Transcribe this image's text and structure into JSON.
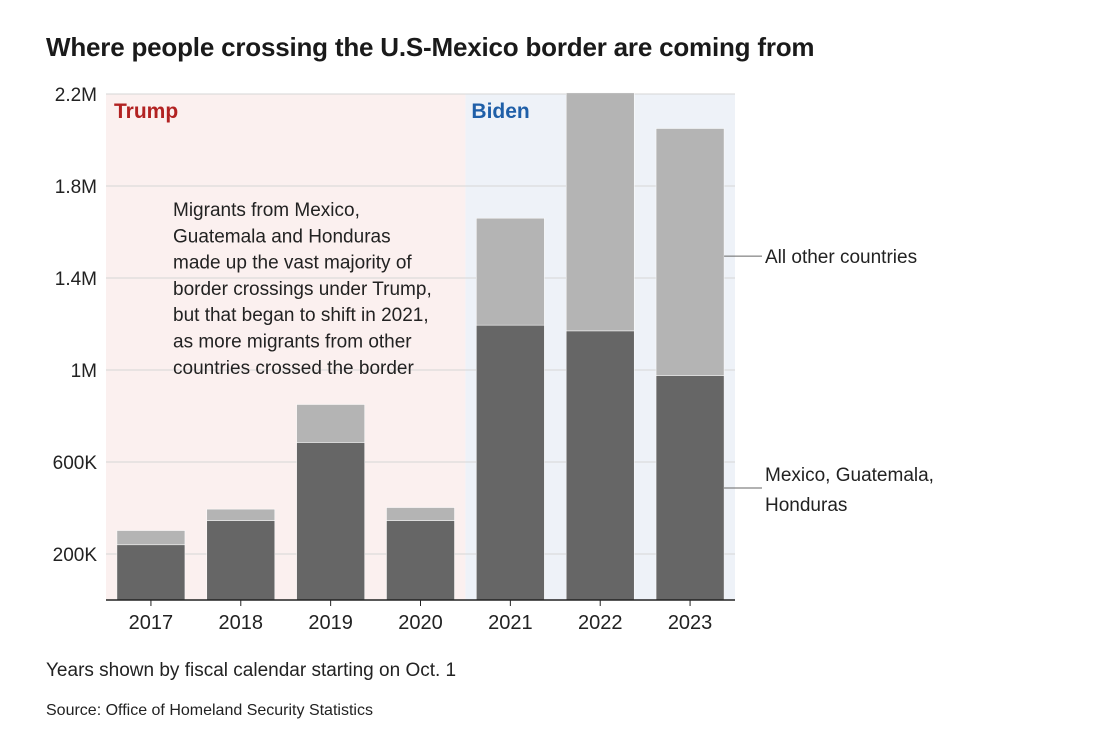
{
  "chart_data": {
    "type": "bar",
    "stacked": true,
    "title": "Where people crossing the U.S-Mexico border are coming from",
    "categories": [
      "2017",
      "2018",
      "2019",
      "2020",
      "2021",
      "2022",
      "2023"
    ],
    "series": [
      {
        "name": "Mexico, Guatemala, Honduras",
        "values": [
          240000,
          345000,
          685000,
          345000,
          1195000,
          1170000,
          975000
        ],
        "color": "#666666"
      },
      {
        "name": "All other countries",
        "values": [
          62000,
          50000,
          165000,
          57000,
          465000,
          1035000,
          1075000
        ],
        "color": "#b4b4b4"
      }
    ],
    "totals": [
      302000,
      395000,
      850000,
      402000,
      1660000,
      2205000,
      2050000
    ],
    "ylim": [
      0,
      2200000
    ],
    "yticks": [
      200000,
      600000,
      1000000,
      1400000,
      1800000,
      2200000
    ],
    "ytick_labels": [
      "200K",
      "600K",
      "1M",
      "1.4M",
      "1.8M",
      "2.2M"
    ],
    "legend_labels": {
      "other": "All other countries",
      "mexico_line1": "Mexico, Guatemala,",
      "mexico_line2": "Honduras"
    },
    "periods": [
      {
        "label": "Trump",
        "start": "2017",
        "end": "2020",
        "label_color": "#b22222",
        "bg_color": "#fbf0ef"
      },
      {
        "label": "Biden",
        "start": "2021",
        "end": "2023",
        "label_color": "#1f5fa8",
        "bg_color": "#eef2f8"
      }
    ],
    "annotation": [
      "Migrants from Mexico,",
      "Guatemala and Honduras",
      "made up the vast majority of",
      "border crossings under Trump,",
      "but that began to shift in 2021,",
      "as more migrants from other",
      "countries crossed the border"
    ]
  },
  "footnote": "Years shown by fiscal calendar starting on Oct. 1",
  "source": "Source: Office of Homeland Security Statistics"
}
